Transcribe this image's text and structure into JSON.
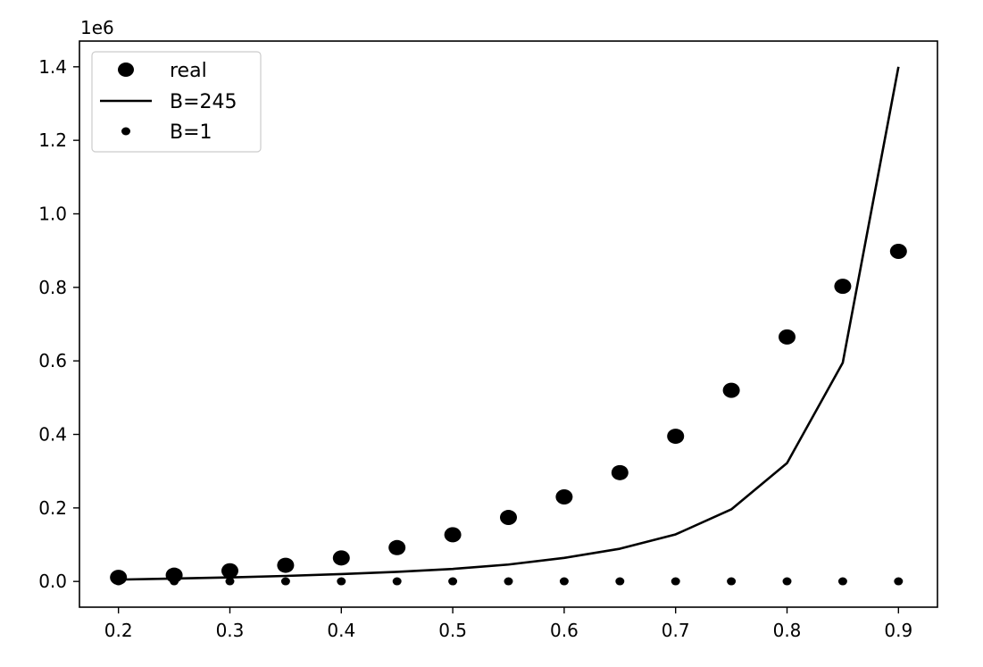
{
  "chart_data": {
    "type": "line",
    "title": "",
    "xlabel": "",
    "ylabel": "",
    "offset_label": "1e6",
    "x": [
      0.2,
      0.25,
      0.3,
      0.35,
      0.4,
      0.45,
      0.5,
      0.55,
      0.6,
      0.65,
      0.7,
      0.75,
      0.8,
      0.85,
      0.9
    ],
    "xlim": [
      0.165,
      0.935
    ],
    "ylim": [
      -0.07,
      1.47
    ],
    "x_ticks": [
      0.2,
      0.3,
      0.4,
      0.5,
      0.6,
      0.7,
      0.8,
      0.9
    ],
    "x_tick_labels": [
      "0.2",
      "0.3",
      "0.4",
      "0.5",
      "0.6",
      "0.7",
      "0.8",
      "0.9"
    ],
    "y_ticks": [
      0.0,
      0.2,
      0.4,
      0.6,
      0.8,
      1.0,
      1.2,
      1.4
    ],
    "y_tick_labels": [
      "0.0",
      "0.2",
      "0.4",
      "0.6",
      "0.8",
      "1.0",
      "1.2",
      "1.4"
    ],
    "grid": false,
    "legend_position": "top-left",
    "series": [
      {
        "name": "real",
        "style": "large-dots",
        "color": "#000000",
        "values": [
          0.011,
          0.017,
          0.029,
          0.044,
          0.064,
          0.092,
          0.127,
          0.174,
          0.23,
          0.296,
          0.395,
          0.52,
          0.665,
          0.803,
          0.898
        ]
      },
      {
        "name": "B=245",
        "style": "line",
        "color": "#000000",
        "values": [
          0.005,
          0.008,
          0.011,
          0.015,
          0.02,
          0.026,
          0.034,
          0.046,
          0.064,
          0.089,
          0.128,
          0.196,
          0.322,
          0.595,
          1.4
        ]
      },
      {
        "name": "B=1",
        "style": "small-dots",
        "color": "#000000",
        "values": [
          0.0003,
          0.0003,
          0.0003,
          0.0003,
          0.0003,
          0.0003,
          0.0003,
          0.0003,
          0.0003,
          0.0003,
          0.0003,
          0.0003,
          0.0003,
          0.0003,
          0.0003
        ]
      }
    ]
  }
}
